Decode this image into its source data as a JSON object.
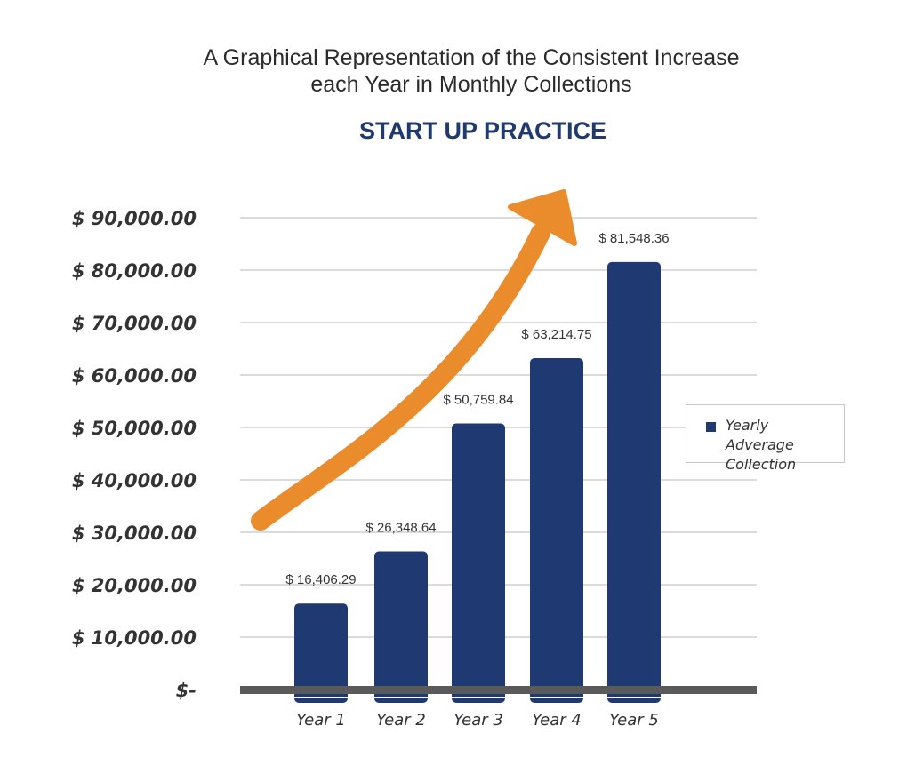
{
  "chart_data": {
    "type": "bar",
    "title": "A Graphical Representation of the Consistent Increase each Year in Monthly Collections",
    "title_lines": [
      "A Graphical Representation of the Consistent Increase",
      "each Year in Monthly Collections"
    ],
    "subtitle": "START UP PRACTICE",
    "categories": [
      "Year 1",
      "Year 2",
      "Year 3",
      "Year 4",
      "Year 5"
    ],
    "series": [
      {
        "name": "Yearly Adverage Collection",
        "values": [
          16406.29,
          26348.64,
          50759.84,
          63214.75,
          81548.36
        ],
        "data_labels": [
          "$ 16,406.29",
          "$ 26,348.64",
          "$ 50,759.84",
          "$ 63,214.75",
          "$ 81,548.36"
        ]
      }
    ],
    "y_ticks": [
      0,
      10000,
      20000,
      30000,
      40000,
      50000,
      60000,
      70000,
      80000,
      90000
    ],
    "y_tick_labels": [
      "$-",
      "$ 10,000.00",
      "$ 20,000.00",
      "$ 30,000.00",
      "$ 40,000.00",
      "$ 50,000.00",
      "$ 60,000.00",
      "$ 70,000.00",
      "$ 80,000.00",
      "$ 90,000.00"
    ],
    "ylim": [
      0,
      90000
    ],
    "xlabel": "",
    "ylabel": "",
    "grid": true,
    "legend": {
      "position": "right",
      "lines": [
        "Yearly Adverage",
        "Collection"
      ]
    },
    "annotation": "upward-trend-arrow",
    "colors": {
      "bar": "#1f3a73",
      "arrow": "#ea8c2c",
      "grid": "#cfcfcf",
      "baseline": "#5a5a5a",
      "subtitle": "#213a6d"
    }
  }
}
